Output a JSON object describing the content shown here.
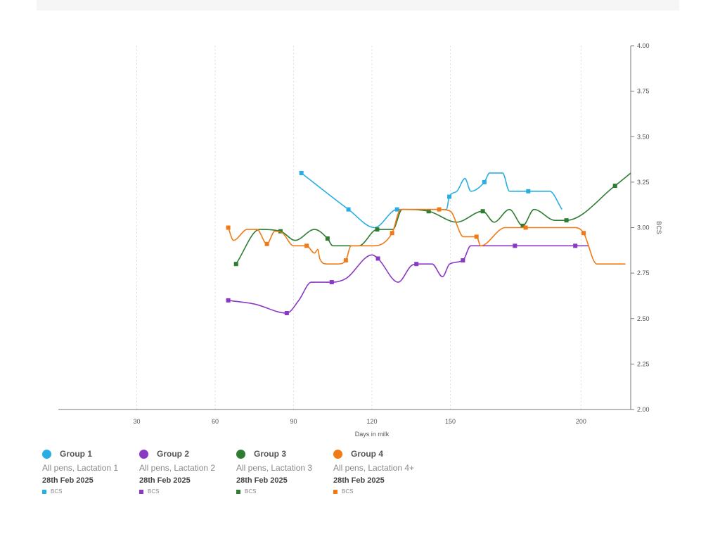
{
  "chart_data": {
    "type": "line",
    "xlabel": "Days in milk",
    "ylabel": "BCS",
    "xlim": [
      0,
      219
    ],
    "ylim": [
      2.0,
      4.0
    ],
    "x_ticks": [
      30,
      60,
      90,
      120,
      150,
      200
    ],
    "y_ticks": [
      "2.00",
      "2.25",
      "2.50",
      "2.75",
      "3.00",
      "3.25",
      "3.50",
      "3.75",
      "4.00"
    ],
    "y_axis_side": "right",
    "grid": "vertical dotted",
    "legend_placement": "bottom",
    "series": [
      {
        "name": "Group 1",
        "subtitle": "All pens, Lactation 1",
        "date": "28th Feb 2025",
        "metric": "BCS",
        "color": "#29aee3",
        "points": [
          [
            93,
            3.3
          ],
          [
            111,
            3.1
          ],
          [
            121,
            3.0
          ],
          [
            129.6,
            3.1
          ],
          [
            134,
            3.1
          ],
          [
            148.5,
            3.1
          ],
          [
            149.6,
            3.17
          ],
          [
            152.5,
            3.2
          ],
          [
            155.6,
            3.27
          ],
          [
            157.8,
            3.2
          ],
          [
            163,
            3.25
          ],
          [
            165,
            3.3
          ],
          [
            170,
            3.3
          ],
          [
            172.6,
            3.2
          ],
          [
            179.8,
            3.2
          ],
          [
            188,
            3.2
          ],
          [
            192.7,
            3.1
          ]
        ],
        "markers": [
          93,
          111,
          129.6,
          149.6,
          163,
          179.8
        ]
      },
      {
        "name": "Group 2",
        "subtitle": "All pens, Lactation 2",
        "date": "28th Feb 2025",
        "metric": "BCS",
        "color": "#8a3ac2",
        "points": [
          [
            65,
            2.6
          ],
          [
            75,
            2.58
          ],
          [
            87.4,
            2.53
          ],
          [
            92,
            2.6
          ],
          [
            96.8,
            2.7
          ],
          [
            104.6,
            2.7
          ],
          [
            110,
            2.72
          ],
          [
            120,
            2.85
          ],
          [
            122.3,
            2.83
          ],
          [
            130,
            2.7
          ],
          [
            135,
            2.79
          ],
          [
            137,
            2.8
          ],
          [
            143,
            2.8
          ],
          [
            147,
            2.73
          ],
          [
            149.7,
            2.8
          ],
          [
            154.8,
            2.82
          ],
          [
            157.8,
            2.9
          ],
          [
            174.7,
            2.9
          ],
          [
            197.8,
            2.9
          ],
          [
            203,
            2.9
          ]
        ],
        "markers": [
          65,
          87.4,
          104.6,
          122.3,
          137,
          154.8,
          174.7,
          197.8
        ]
      },
      {
        "name": "Group 3",
        "subtitle": "All pens, Lactation 3",
        "date": "28th Feb 2025",
        "metric": "BCS",
        "color": "#2e7d32",
        "points": [
          [
            68,
            2.8
          ],
          [
            77,
            2.99
          ],
          [
            85,
            2.98
          ],
          [
            90.6,
            2.93
          ],
          [
            98,
            2.99
          ],
          [
            103,
            2.94
          ],
          [
            105,
            2.9
          ],
          [
            115,
            2.9
          ],
          [
            122,
            2.99
          ],
          [
            128,
            2.99
          ],
          [
            131.5,
            3.1
          ],
          [
            141.7,
            3.09
          ],
          [
            152.4,
            3.03
          ],
          [
            162.4,
            3.09
          ],
          [
            166.7,
            3.03
          ],
          [
            172.6,
            3.1
          ],
          [
            177.7,
            3.01
          ],
          [
            182,
            3.1
          ],
          [
            190,
            3.04
          ],
          [
            194.4,
            3.04
          ],
          [
            213,
            3.23
          ],
          [
            219,
            3.3
          ]
        ],
        "markers": [
          68,
          85,
          103,
          122,
          141.7,
          162.4,
          177.7,
          194.4,
          213
        ]
      },
      {
        "name": "Group 4",
        "subtitle": "All pens, Lactation 4+",
        "date": "28th Feb 2025",
        "metric": "BCS",
        "color": "#f07b16",
        "points": [
          [
            65,
            3.0
          ],
          [
            67,
            2.93
          ],
          [
            72.3,
            2.99
          ],
          [
            76,
            2.99
          ],
          [
            79.8,
            2.91
          ],
          [
            82.8,
            2.98
          ],
          [
            85.8,
            2.97
          ],
          [
            90,
            2.9
          ],
          [
            95,
            2.9
          ],
          [
            98,
            2.86
          ],
          [
            99.3,
            2.88
          ],
          [
            100,
            2.83
          ],
          [
            102.7,
            2.8
          ],
          [
            107,
            2.8
          ],
          [
            110,
            2.82
          ],
          [
            112,
            2.9
          ],
          [
            121,
            2.9
          ],
          [
            127.7,
            2.97
          ],
          [
            131,
            3.1
          ],
          [
            145.7,
            3.1
          ],
          [
            150,
            3.09
          ],
          [
            155,
            2.95
          ],
          [
            160,
            2.95
          ],
          [
            161.6,
            2.9
          ],
          [
            171,
            3.0
          ],
          [
            178.8,
            3.0
          ],
          [
            198,
            3.0
          ],
          [
            201,
            2.97
          ],
          [
            206,
            2.8
          ],
          [
            217,
            2.8
          ]
        ],
        "markers": [
          65,
          79.8,
          95,
          110,
          127.7,
          145.7,
          160,
          178.8,
          201
        ]
      }
    ]
  }
}
